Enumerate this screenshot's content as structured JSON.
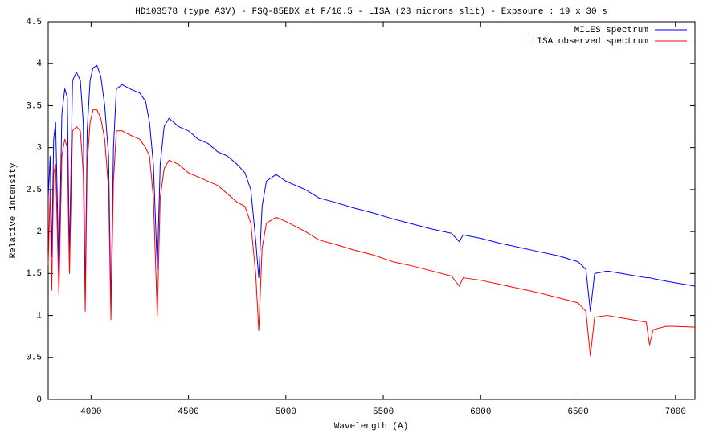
{
  "chart_data": {
    "type": "line",
    "title": "HD103578 (type A3V) - FSQ-85EDX at F/10.5 - LISA (23 microns slit) - Expsoure : 19 x 30 s",
    "x_label": "Wavelength (A)",
    "y_label": "Relative intensity",
    "xlim": [
      3780,
      7100
    ],
    "ylim": [
      0,
      4.5
    ],
    "xticks": [
      4000,
      4500,
      5000,
      5500,
      6000,
      6500,
      7000
    ],
    "yticks": [
      0,
      0.5,
      1,
      1.5,
      2,
      2.5,
      3,
      3.5,
      4,
      4.5
    ],
    "grid": false,
    "legend": "top-right",
    "x": [
      3780,
      3790,
      3798,
      3808,
      3818,
      3835,
      3850,
      3865,
      3878,
      3889,
      3905,
      3925,
      3945,
      3960,
      3970,
      3980,
      3995,
      4010,
      4030,
      4050,
      4070,
      4090,
      4102,
      4115,
      4130,
      4160,
      4200,
      4250,
      4280,
      4300,
      4320,
      4340,
      4355,
      4375,
      4400,
      4450,
      4500,
      4550,
      4600,
      4650,
      4700,
      4750,
      4790,
      4820,
      4845,
      4861,
      4878,
      4900,
      4950,
      5000,
      5100,
      5170,
      5250,
      5350,
      5450,
      5550,
      5650,
      5750,
      5850,
      5890,
      5910,
      6000,
      6100,
      6200,
      6300,
      6400,
      6500,
      6540,
      6563,
      6585,
      6650,
      6750,
      6850,
      6867,
      6885,
      6950,
      7000,
      7100
    ],
    "series": [
      {
        "name": "MILES spectrum",
        "color": "#0000ff",
        "values": [
          2.4,
          2.9,
          1.7,
          3.1,
          3.3,
          1.5,
          3.4,
          3.7,
          3.6,
          1.7,
          3.8,
          3.9,
          3.8,
          3.3,
          1.2,
          3.2,
          3.8,
          3.95,
          3.98,
          3.85,
          3.5,
          2.9,
          1.1,
          3.0,
          3.7,
          3.75,
          3.7,
          3.65,
          3.55,
          3.3,
          2.8,
          1.55,
          2.8,
          3.25,
          3.35,
          3.25,
          3.2,
          3.1,
          3.05,
          2.95,
          2.9,
          2.8,
          2.7,
          2.5,
          1.9,
          1.45,
          2.3,
          2.6,
          2.68,
          2.6,
          2.5,
          2.4,
          2.35,
          2.28,
          2.22,
          2.15,
          2.09,
          2.03,
          1.98,
          1.88,
          1.96,
          1.92,
          1.86,
          1.81,
          1.76,
          1.71,
          1.64,
          1.55,
          1.05,
          1.5,
          1.53,
          1.49,
          1.45,
          1.45,
          1.44,
          1.41,
          1.39,
          1.35
        ]
      },
      {
        "name": "LISA observed spectrum",
        "color": "#ff0000",
        "values": [
          1.6,
          2.5,
          1.3,
          2.7,
          2.8,
          1.25,
          2.9,
          3.1,
          3.0,
          1.5,
          3.2,
          3.25,
          3.2,
          2.7,
          1.05,
          2.8,
          3.3,
          3.45,
          3.45,
          3.35,
          3.1,
          2.5,
          0.95,
          2.6,
          3.2,
          3.2,
          3.15,
          3.1,
          3.0,
          2.9,
          2.4,
          1.0,
          2.4,
          2.75,
          2.85,
          2.8,
          2.7,
          2.65,
          2.6,
          2.55,
          2.45,
          2.35,
          2.3,
          2.1,
          1.5,
          0.82,
          1.8,
          2.1,
          2.17,
          2.12,
          2.0,
          1.9,
          1.85,
          1.78,
          1.72,
          1.64,
          1.59,
          1.53,
          1.47,
          1.35,
          1.45,
          1.42,
          1.37,
          1.32,
          1.27,
          1.21,
          1.15,
          1.05,
          0.52,
          0.98,
          1.0,
          0.96,
          0.92,
          0.65,
          0.83,
          0.87,
          0.87,
          0.86
        ]
      }
    ]
  }
}
